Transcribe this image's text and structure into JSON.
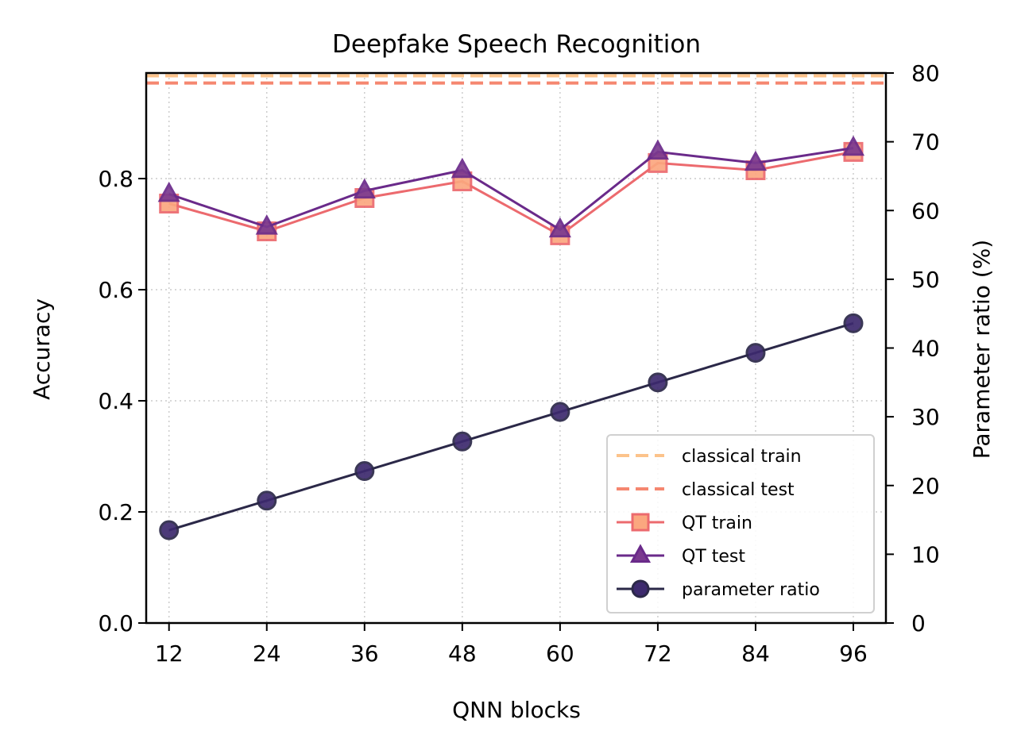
{
  "chart_data": {
    "type": "line",
    "title": "Deepfake Speech Recognition",
    "xlabel": "QNN blocks",
    "ylabel": "Accuracy",
    "y2label": "Parameter ratio (%)",
    "x": [
      12,
      24,
      36,
      48,
      60,
      72,
      84,
      96
    ],
    "xticks": [
      "12",
      "24",
      "36",
      "48",
      "60",
      "72",
      "84",
      "96"
    ],
    "ylim": [
      0,
      0.99
    ],
    "yticks": [
      "0.0",
      "0.2",
      "0.4",
      "0.6",
      "0.8"
    ],
    "y2lim": [
      0,
      80
    ],
    "y2ticks": [
      "0",
      "10",
      "20",
      "30",
      "40",
      "50",
      "60",
      "70",
      "80"
    ],
    "grid": true,
    "legend_position": "lower-right",
    "series": [
      {
        "name": "classical train",
        "axis": "left",
        "style": "dashed-hline",
        "color": "#fcc38b",
        "values": [
          0.985,
          0.985,
          0.985,
          0.985,
          0.985,
          0.985,
          0.985,
          0.985
        ]
      },
      {
        "name": "classical test",
        "axis": "left",
        "style": "dashed-hline",
        "color": "#f58770",
        "values": [
          0.972,
          0.972,
          0.972,
          0.972,
          0.972,
          0.972,
          0.972,
          0.972
        ]
      },
      {
        "name": "QT train",
        "axis": "left",
        "marker": "square",
        "color": "#ec6a6e",
        "fill": "#fba77f",
        "values": [
          0.755,
          0.705,
          0.765,
          0.795,
          0.698,
          0.828,
          0.815,
          0.848
        ]
      },
      {
        "name": "QT test",
        "axis": "left",
        "marker": "triangle",
        "color": "#6a2a8a",
        "fill": "#7b3a8f",
        "values": [
          0.772,
          0.713,
          0.778,
          0.815,
          0.708,
          0.848,
          0.828,
          0.855
        ]
      },
      {
        "name": "parameter ratio",
        "axis": "right",
        "marker": "circle",
        "color": "#2b2848",
        "fill": "#3d2a6e",
        "values": [
          13.5,
          17.8,
          22.1,
          26.4,
          30.7,
          35.0,
          39.3,
          43.6
        ]
      }
    ]
  }
}
